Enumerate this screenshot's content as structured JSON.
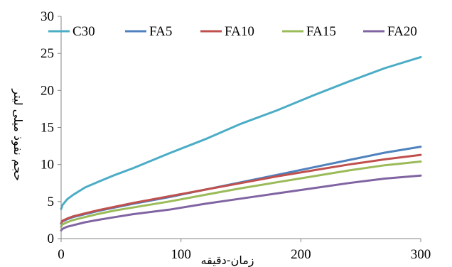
{
  "chart_data": {
    "type": "line",
    "xlabel": "زمان-دقیقه",
    "ylabel": "حجم نفوذ میلی لیتر",
    "xlim": [
      0,
      300
    ],
    "ylim": [
      0,
      30
    ],
    "x_ticks": [
      "0",
      "100",
      "200",
      "300"
    ],
    "y_ticks": [
      "0",
      "5",
      "10",
      "15",
      "20",
      "25",
      "30"
    ],
    "grid": false,
    "legend_position": "top",
    "x": [
      0,
      1,
      5,
      10,
      20,
      30,
      45,
      60,
      90,
      120,
      150,
      180,
      210,
      240,
      270,
      300
    ],
    "series": [
      {
        "name": "C30",
        "color": "#4bacc6",
        "values": [
          4.0,
          4.5,
          5.3,
          5.9,
          6.9,
          7.6,
          8.6,
          9.5,
          11.5,
          13.4,
          15.5,
          17.3,
          19.3,
          21.2,
          23.0,
          24.5
        ]
      },
      {
        "name": "FA5",
        "color": "#4f81bd",
        "values": [
          2.0,
          2.3,
          2.6,
          2.9,
          3.3,
          3.7,
          4.2,
          4.7,
          5.6,
          6.6,
          7.6,
          8.6,
          9.6,
          10.6,
          11.6,
          12.4
        ]
      },
      {
        "name": "FA10",
        "color": "#c0504d",
        "values": [
          2.1,
          2.4,
          2.7,
          3.0,
          3.4,
          3.8,
          4.3,
          4.8,
          5.7,
          6.6,
          7.5,
          8.4,
          9.2,
          10.0,
          10.7,
          11.3
        ]
      },
      {
        "name": "FA15",
        "color": "#9bbb59",
        "values": [
          1.6,
          1.9,
          2.2,
          2.5,
          2.9,
          3.3,
          3.8,
          4.2,
          5.0,
          5.9,
          6.8,
          7.6,
          8.4,
          9.2,
          9.9,
          10.4
        ]
      },
      {
        "name": "FA20",
        "color": "#8064a2",
        "values": [
          1.1,
          1.3,
          1.6,
          1.8,
          2.2,
          2.5,
          2.9,
          3.3,
          3.9,
          4.7,
          5.4,
          6.1,
          6.8,
          7.5,
          8.1,
          8.5
        ]
      }
    ]
  }
}
